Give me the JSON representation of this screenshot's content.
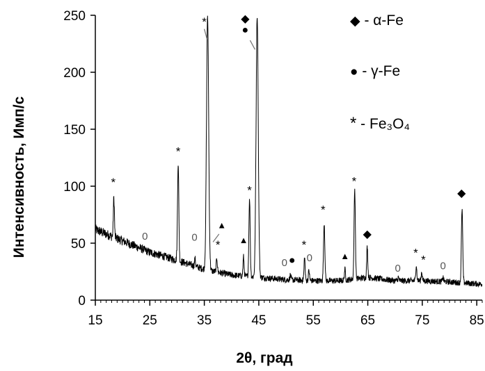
{
  "chart_data": {
    "type": "line",
    "title": "",
    "xlabel": "2θ, град",
    "ylabel": "Интенсивность, Имп/с",
    "xlim": [
      15,
      86
    ],
    "ylim": [
      0,
      250
    ],
    "xticks": [
      15,
      25,
      35,
      45,
      55,
      65,
      75,
      85
    ],
    "yticks": [
      0,
      50,
      100,
      150,
      200,
      250
    ],
    "grid": false,
    "legend_position": "top-right",
    "series": [
      {
        "color": "#000000",
        "baseline": [
          [
            15,
            62
          ],
          [
            20,
            52
          ],
          [
            25,
            42
          ],
          [
            30,
            35
          ],
          [
            35,
            27
          ],
          [
            40,
            22
          ],
          [
            45,
            20
          ],
          [
            50,
            18
          ],
          [
            55,
            17
          ],
          [
            60,
            17
          ],
          [
            65,
            20
          ],
          [
            70,
            17
          ],
          [
            75,
            17
          ],
          [
            80,
            16
          ],
          [
            86,
            14
          ]
        ],
        "peaks": [
          {
            "x": 18.4,
            "y": 90,
            "label": "*"
          },
          {
            "x": 24.3,
            "y": 29,
            "label": "0"
          },
          {
            "x": 30.2,
            "y": 120,
            "label": "*"
          },
          {
            "x": 33.3,
            "y": 36,
            "label": "0"
          },
          {
            "x": 35.6,
            "y": 250,
            "label": "*"
          },
          {
            "x": 37.3,
            "y": 37,
            "label": "*"
          },
          {
            "x": 42.2,
            "y": 38,
            "label": "▲"
          },
          {
            "x": 43.3,
            "y": 88,
            "label": "*"
          },
          {
            "x": 44.7,
            "y": 250,
            "label": "◆●"
          },
          {
            "x": 50.8,
            "y": 22,
            "label": "●"
          },
          {
            "x": 53.4,
            "y": 38,
            "label": "*"
          },
          {
            "x": 54.2,
            "y": 26,
            "label": "0"
          },
          {
            "x": 57.0,
            "y": 68,
            "label": "*"
          },
          {
            "x": 60.8,
            "y": 27,
            "label": "▲"
          },
          {
            "x": 62.6,
            "y": 97,
            "label": "*"
          },
          {
            "x": 64.9,
            "y": 47,
            "label": "◆"
          },
          {
            "x": 70.6,
            "y": 20,
            "label": "0"
          },
          {
            "x": 73.9,
            "y": 31,
            "label": "*"
          },
          {
            "x": 74.9,
            "y": 25,
            "label": "*"
          },
          {
            "x": 78.8,
            "y": 20,
            "label": "0"
          },
          {
            "x": 82.3,
            "y": 80,
            "label": "◆"
          }
        ]
      }
    ],
    "legend": [
      {
        "symbol": "◆",
        "text": " - α-Fe"
      },
      {
        "symbol": "●",
        "text": " - γ-Fe"
      },
      {
        "symbol": "*",
        "text": " - Fe₃O₄"
      }
    ],
    "annotations": [
      {
        "text": "*",
        "x": 35.0,
        "y": 241
      },
      {
        "text": "◆",
        "x": 42.5,
        "y": 244
      },
      {
        "text": "●",
        "x": 42.5,
        "y": 234
      },
      {
        "text": "*",
        "x": 18.3,
        "y": 100
      },
      {
        "text": "0",
        "x": 24.1,
        "y": 53
      },
      {
        "text": "*",
        "x": 30.2,
        "y": 127
      },
      {
        "text": "0",
        "x": 33.2,
        "y": 52
      },
      {
        "text": "▲",
        "x": 38.2,
        "y": 63
      },
      {
        "text": "*",
        "x": 37.5,
        "y": 45
      },
      {
        "text": "▲",
        "x": 42.2,
        "y": 50
      },
      {
        "text": "*",
        "x": 43.3,
        "y": 93
      },
      {
        "text": "0",
        "x": 49.7,
        "y": 30
      },
      {
        "text": "●",
        "x": 51.1,
        "y": 32
      },
      {
        "text": "*",
        "x": 53.3,
        "y": 45
      },
      {
        "text": "0",
        "x": 54.3,
        "y": 34
      },
      {
        "text": "*",
        "x": 56.8,
        "y": 76
      },
      {
        "text": "▲",
        "x": 60.8,
        "y": 36
      },
      {
        "text": "*",
        "x": 62.5,
        "y": 101
      },
      {
        "text": "◆",
        "x": 64.9,
        "y": 55
      },
      {
        "text": "0",
        "x": 70.5,
        "y": 25
      },
      {
        "text": "*",
        "x": 73.8,
        "y": 38
      },
      {
        "text": "*",
        "x": 75.2,
        "y": 32
      },
      {
        "text": "0",
        "x": 78.8,
        "y": 27
      },
      {
        "text": "◆",
        "x": 82.2,
        "y": 91
      }
    ],
    "pointer_lines": [
      {
        "from": [
          35.0,
          238
        ],
        "to": [
          35.5,
          229
        ]
      },
      {
        "from": [
          43.4,
          228
        ],
        "to": [
          44.3,
          220
        ]
      },
      {
        "from": [
          37.7,
          58
        ],
        "to": [
          36.6,
          51
        ]
      }
    ]
  }
}
